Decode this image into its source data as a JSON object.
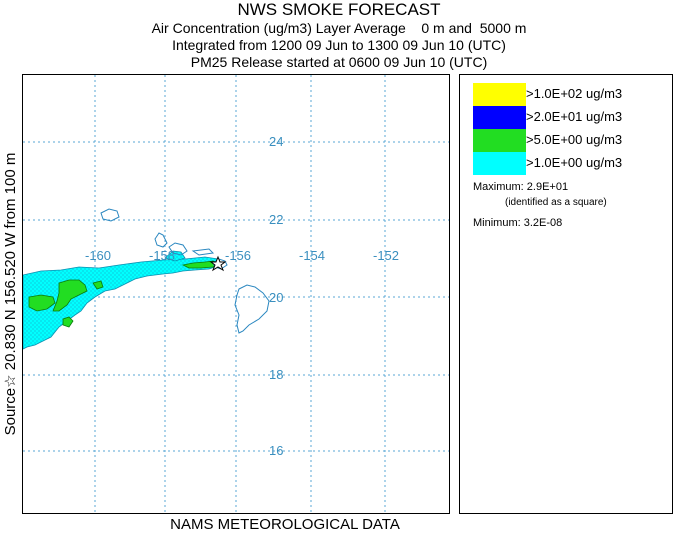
{
  "header": {
    "title": "NWS SMOKE FORECAST",
    "line1": "Air Concentration (ug/m3) Layer Average    0 m and  5000 m",
    "line2": "Integrated from 1200 09 Jun to 1300 09 Jun 10 (UTC)",
    "line3": "PM25 Release started at 0600 09 Jun 10 (UTC)"
  },
  "source_label": "Source☆ 20.830 N 156.520  W     from  100 m",
  "footer": "NAMS METEOROLOGICAL DATA",
  "map": {
    "lon_labels": [
      "-160",
      "-158",
      "-156",
      "-154",
      "-152"
    ],
    "lat_labels": [
      "24",
      "22",
      "20",
      "18",
      "16"
    ],
    "source_marker": "star",
    "grid_color": "#5aa7d6",
    "label_color": "#3a8fbf",
    "coast_color": "#2a87c0"
  },
  "legend": {
    "items": [
      {
        "label": ">1.0E+02 ug/m3",
        "color": "#ffff00"
      },
      {
        "label": ">2.0E+01 ug/m3",
        "color": "#0000ff"
      },
      {
        "label": ">5.0E+00 ug/m3",
        "color": "#22dd22"
      },
      {
        "label": ">1.0E+00 ug/m3",
        "color": "#00ffff"
      }
    ],
    "maximum": "Maximum: 2.9E+01",
    "maximum_note": "(identified as a square)",
    "minimum": "Minimum: 3.2E-08"
  }
}
